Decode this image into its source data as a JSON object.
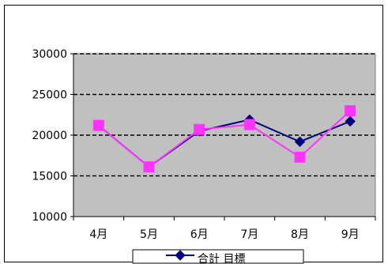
{
  "chart_data": {
    "type": "line",
    "categories": [
      "4月",
      "5月",
      "6月",
      "7月",
      "8月",
      "9月"
    ],
    "series": [
      {
        "name": "合計",
        "values": [
          21200,
          16100,
          20500,
          21900,
          19200,
          21700
        ],
        "color": "#00007f",
        "marker": "diamond"
      },
      {
        "name": "目標",
        "values": [
          21200,
          16100,
          20700,
          21300,
          17300,
          23000
        ],
        "color": "#ff33ff",
        "marker": "square"
      }
    ],
    "ylim": [
      10000,
      30000
    ],
    "yticks": [
      10000,
      15000,
      20000,
      25000,
      30000
    ],
    "ytick_labels": [
      "10000",
      "15000",
      "20000",
      "25000",
      "30000"
    ],
    "plot_background": "#c0c0c0",
    "gridlines": "dashed horizontal",
    "legend_position": "bottom"
  }
}
